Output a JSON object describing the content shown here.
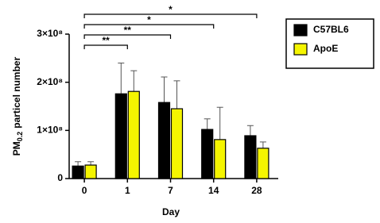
{
  "chart_data": {
    "type": "bar",
    "categories": [
      "0",
      "1",
      "7",
      "14",
      "28"
    ],
    "series": [
      {
        "name": "C57BL6",
        "color": "#000000",
        "values": [
          26000000,
          176000000,
          158000000,
          102000000,
          89000000
        ],
        "errors": [
          9000000,
          64000000,
          53000000,
          22000000,
          21000000
        ]
      },
      {
        "name": "ApoE",
        "color": "#f5f500",
        "values": [
          28000000,
          181000000,
          145000000,
          81000000,
          63000000
        ],
        "errors": [
          7000000,
          43000000,
          58000000,
          67000000,
          13000000
        ]
      }
    ],
    "x_label": "Day",
    "y_label": [
      "PM",
      "0.2",
      "particel number"
    ],
    "ylim": [
      0,
      300000000
    ],
    "yticks": [
      0,
      {
        "value": 100000000,
        "label": "1×10⁸"
      },
      {
        "value": 200000000,
        "label": "2×10⁸"
      },
      {
        "value": 300000000,
        "label": "3×10⁸"
      }
    ],
    "annotations": [
      {
        "text": "**",
        "from": "0",
        "to": "1"
      },
      {
        "text": "**",
        "from": "0",
        "to": "7"
      },
      {
        "text": "*",
        "from": "0",
        "to": "14"
      },
      {
        "text": "*",
        "from": "0",
        "to": "28"
      }
    ],
    "legend": "right"
  }
}
